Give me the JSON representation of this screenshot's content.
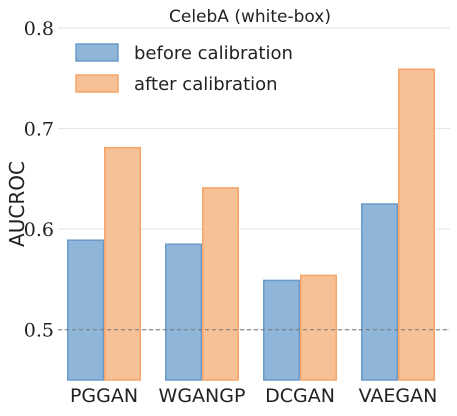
{
  "chart_data": {
    "type": "bar",
    "title": "CelebA (white-box)",
    "xlabel": "",
    "ylabel": "AUCROC",
    "categories": [
      "PGGAN",
      "WGANGP",
      "DCGAN",
      "VAEGAN"
    ],
    "series": [
      {
        "name": "before calibration",
        "values": [
          0.589,
          0.585,
          0.549,
          0.625
        ],
        "color": "#8fb6d9",
        "edge": "#6a9bc9"
      },
      {
        "name": "after calibration",
        "values": [
          0.681,
          0.641,
          0.554,
          0.759
        ],
        "color": "#f6c196",
        "edge": "#f5a56a"
      }
    ],
    "ylim": [
      0.45,
      0.8
    ],
    "yticks": [
      "0.5",
      "0.6",
      "0.7",
      "0.8"
    ],
    "reference_line": 0.5,
    "grid": "horizontal",
    "legend_position": "top-left"
  }
}
